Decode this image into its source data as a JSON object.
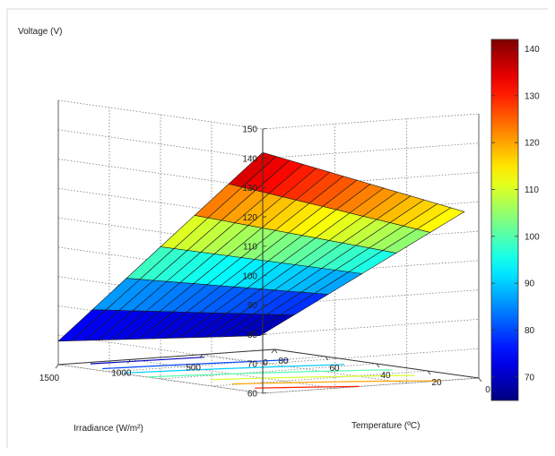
{
  "chart_data": {
    "type": "surface",
    "zlabel": "Voltage (V)",
    "xlabel": "Irradiance (W/m²)",
    "ylabel": "Temperature (ºC)",
    "zlim": [
      60,
      150
    ],
    "z_ticks": [
      60,
      70,
      80,
      90,
      100,
      110,
      120,
      130,
      140,
      150
    ],
    "irradiance_ticks": [
      0,
      500,
      1000,
      1500
    ],
    "temperature_ticks": [
      0,
      20,
      40,
      60,
      80
    ],
    "irradiance_range": [
      100,
      1500
    ],
    "temperature_range": [
      0,
      80
    ],
    "surface_corners": {
      "irradiance_1500_temperature_0": 142,
      "irradiance_100_temperature_0": 117,
      "irradiance_1500_temperature_80": 68,
      "irradiance_100_temperature_80": 65
    },
    "colorbar": {
      "range": [
        65,
        142
      ],
      "ticks": [
        70,
        80,
        90,
        100,
        110,
        120,
        130,
        140
      ],
      "colormap": "jet"
    },
    "grid": true
  }
}
